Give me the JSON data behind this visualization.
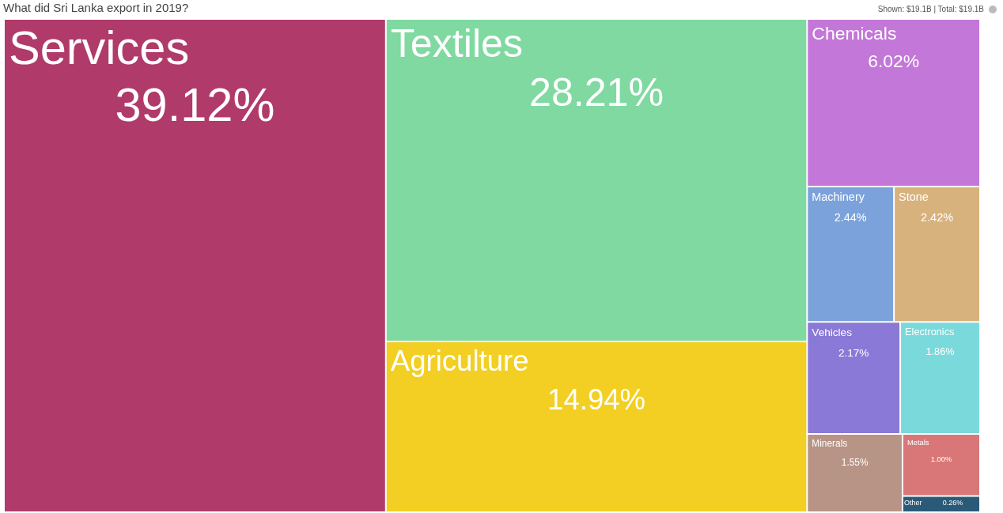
{
  "chart_data": {
    "type": "other",
    "title": "What did Sri Lanka export in 2019?",
    "annotations": [
      "Shown: $19.1B | Total: $19.1B"
    ],
    "categories": [
      "Services",
      "Textiles",
      "Agriculture",
      "Chemicals",
      "Machinery",
      "Stone",
      "Vehicles",
      "Electronics",
      "Minerals",
      "Metals",
      "Other"
    ],
    "values": [
      39.12,
      28.21,
      14.94,
      6.02,
      2.44,
      2.42,
      2.17,
      1.86,
      1.55,
      1.0,
      0.26
    ],
    "value_labels": [
      "39.12%",
      "28.21%",
      "14.94%",
      "6.02%",
      "2.44%",
      "2.42%",
      "2.17%",
      "1.86%",
      "1.55%",
      "1.00%",
      "0.26%"
    ],
    "colors": [
      "#b03a6a",
      "#7fd9a1",
      "#f2cf22",
      "#c377d8",
      "#7ba2db",
      "#d8b27c",
      "#8a79d6",
      "#7ad9db",
      "#b89486",
      "#d97778",
      "#2a5a78"
    ]
  }
}
